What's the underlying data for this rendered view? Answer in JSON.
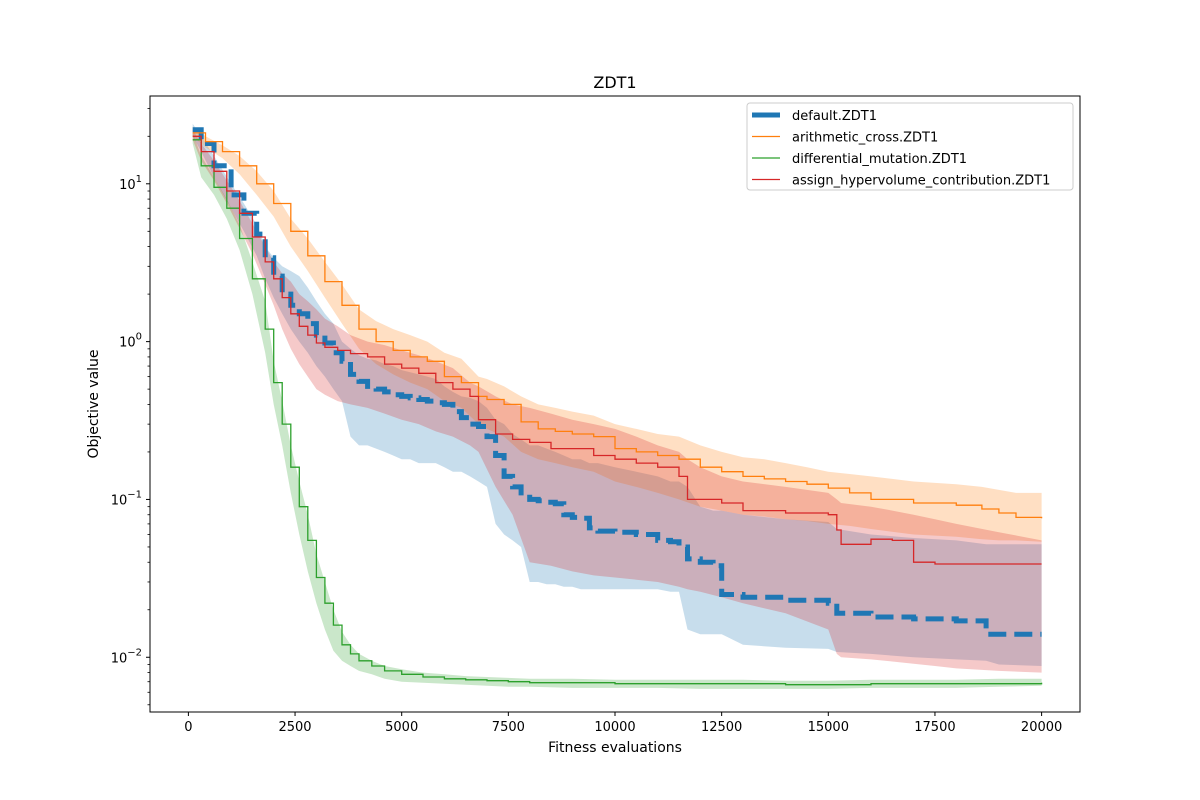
{
  "chart_data": {
    "type": "line",
    "title": "ZDT1",
    "xlabel": "Fitness evaluations",
    "ylabel": "Objective value",
    "xlim": [
      -900,
      20900
    ],
    "ylim": [
      0.0045,
      36
    ],
    "yscale": "log",
    "grid": false,
    "legend_position": "top-right",
    "x_ticks": [
      {
        "value": 0,
        "label": "0"
      },
      {
        "value": 2500,
        "label": "2500"
      },
      {
        "value": 5000,
        "label": "5000"
      },
      {
        "value": 7500,
        "label": "7500"
      },
      {
        "value": 10000,
        "label": "10000"
      },
      {
        "value": 12500,
        "label": "12500"
      },
      {
        "value": 15000,
        "label": "15000"
      },
      {
        "value": 17500,
        "label": "17500"
      },
      {
        "value": 20000,
        "label": "20000"
      }
    ],
    "y_ticks": [
      {
        "value": 0.01,
        "base": "10",
        "exp": "−2"
      },
      {
        "value": 0.1,
        "base": "10",
        "exp": "−1"
      },
      {
        "value": 1,
        "base": "10",
        "exp": "0"
      },
      {
        "value": 10,
        "base": "10",
        "exp": "1"
      }
    ],
    "series": [
      {
        "name": "default.ZDT1",
        "color": "#1f77b4",
        "style": "dashed-thick",
        "x": [
          100,
          300,
          600,
          1000,
          1300,
          1600,
          1800,
          2000,
          2200,
          2400,
          2600,
          2800,
          3000,
          3200,
          3400,
          3600,
          3800,
          4000,
          4200,
          4400,
          4600,
          4800,
          5000,
          5200,
          5400,
          5600,
          5800,
          6000,
          6200,
          6400,
          6600,
          6800,
          7000,
          7200,
          7400,
          7600,
          7800,
          8000,
          8200,
          8400,
          8600,
          8800,
          9000,
          9200,
          9400,
          9600,
          10000,
          10500,
          11000,
          11300,
          11500,
          11700,
          12000,
          12300,
          12500,
          13000,
          14000,
          15000,
          15200,
          16000,
          17000,
          18000,
          18700,
          19000,
          20000
        ],
        "y": [
          22,
          18,
          13,
          8.5,
          6.5,
          4.8,
          3.4,
          2.6,
          2.0,
          1.7,
          1.5,
          1.3,
          1.1,
          0.98,
          0.85,
          0.75,
          0.62,
          0.56,
          0.52,
          0.5,
          0.48,
          0.46,
          0.45,
          0.44,
          0.43,
          0.42,
          0.41,
          0.4,
          0.36,
          0.33,
          0.3,
          0.29,
          0.25,
          0.19,
          0.14,
          0.12,
          0.11,
          0.1,
          0.098,
          0.096,
          0.094,
          0.08,
          0.077,
          0.076,
          0.066,
          0.063,
          0.062,
          0.06,
          0.055,
          0.054,
          0.05,
          0.042,
          0.04,
          0.038,
          0.025,
          0.024,
          0.023,
          0.022,
          0.019,
          0.018,
          0.0175,
          0.017,
          0.014,
          0.014,
          0.014
        ],
        "lower": [
          20,
          16,
          11,
          7,
          5,
          3.5,
          2.5,
          1.9,
          1.5,
          1.2,
          1.0,
          0.85,
          0.7,
          0.6,
          0.5,
          0.42,
          0.25,
          0.22,
          0.22,
          0.21,
          0.2,
          0.19,
          0.18,
          0.18,
          0.17,
          0.17,
          0.17,
          0.16,
          0.15,
          0.15,
          0.14,
          0.13,
          0.12,
          0.07,
          0.06,
          0.055,
          0.05,
          0.03,
          0.03,
          0.029,
          0.029,
          0.028,
          0.028,
          0.027,
          0.027,
          0.027,
          0.027,
          0.027,
          0.027,
          0.026,
          0.026,
          0.015,
          0.014,
          0.014,
          0.014,
          0.012,
          0.0115,
          0.0113,
          0.0108,
          0.0105,
          0.01,
          0.0097,
          0.0095,
          0.009,
          0.0088
        ],
        "upper": [
          24,
          20,
          15,
          10,
          7.5,
          5.5,
          4.0,
          3.4,
          3.0,
          2.8,
          2.6,
          2.2,
          1.8,
          1.5,
          1.3,
          1.0,
          0.9,
          0.82,
          0.78,
          0.76,
          0.72,
          0.7,
          0.66,
          0.64,
          0.62,
          0.6,
          0.58,
          0.52,
          0.48,
          0.45,
          0.44,
          0.42,
          0.38,
          0.32,
          0.3,
          0.26,
          0.24,
          0.22,
          0.22,
          0.21,
          0.2,
          0.19,
          0.18,
          0.18,
          0.17,
          0.17,
          0.16,
          0.15,
          0.14,
          0.13,
          0.13,
          0.12,
          0.09,
          0.085,
          0.085,
          0.08,
          0.075,
          0.072,
          0.065,
          0.06,
          0.057,
          0.055,
          0.052,
          0.052,
          0.052
        ]
      },
      {
        "name": "arithmetic_cross.ZDT1",
        "color": "#ff7f0e",
        "style": "solid",
        "x": [
          100,
          400,
          800,
          1200,
          1600,
          2000,
          2400,
          2800,
          3200,
          3600,
          4000,
          4400,
          4800,
          5200,
          5600,
          6000,
          6400,
          6800,
          7000,
          7400,
          7800,
          8200,
          8600,
          9000,
          9500,
          10000,
          10500,
          11000,
          11500,
          12000,
          12500,
          13000,
          13500,
          14000,
          14500,
          15000,
          15500,
          16000,
          17000,
          18000,
          18600,
          19000,
          19400,
          20000
        ],
        "y": [
          21,
          18.5,
          16,
          13,
          10,
          7.5,
          5.0,
          3.5,
          2.4,
          1.7,
          1.2,
          1.0,
          0.88,
          0.8,
          0.75,
          0.6,
          0.55,
          0.45,
          0.43,
          0.4,
          0.31,
          0.28,
          0.27,
          0.26,
          0.25,
          0.21,
          0.2,
          0.19,
          0.18,
          0.16,
          0.15,
          0.14,
          0.135,
          0.13,
          0.125,
          0.118,
          0.11,
          0.1,
          0.095,
          0.092,
          0.087,
          0.082,
          0.077,
          0.076
        ],
        "lower": [
          20,
          17,
          14.5,
          11.5,
          8.5,
          6.2,
          4.0,
          2.8,
          1.9,
          1.3,
          0.9,
          0.72,
          0.62,
          0.55,
          0.5,
          0.42,
          0.38,
          0.3,
          0.28,
          0.25,
          0.2,
          0.18,
          0.17,
          0.16,
          0.15,
          0.13,
          0.12,
          0.11,
          0.1,
          0.09,
          0.085,
          0.08,
          0.078,
          0.075,
          0.073,
          0.07,
          0.068,
          0.065,
          0.06,
          0.058,
          0.056,
          0.055,
          0.055,
          0.054
        ],
        "upper": [
          23,
          20,
          17.5,
          15,
          12,
          9,
          6.0,
          4.5,
          3.2,
          2.3,
          1.6,
          1.35,
          1.2,
          1.1,
          1.0,
          0.85,
          0.78,
          0.6,
          0.58,
          0.52,
          0.45,
          0.4,
          0.38,
          0.36,
          0.34,
          0.3,
          0.28,
          0.26,
          0.25,
          0.22,
          0.2,
          0.185,
          0.18,
          0.17,
          0.16,
          0.15,
          0.145,
          0.14,
          0.13,
          0.125,
          0.12,
          0.115,
          0.11,
          0.11
        ]
      },
      {
        "name": "differential_mutation.ZDT1",
        "color": "#2ca02c",
        "style": "solid",
        "x": [
          100,
          300,
          600,
          900,
          1200,
          1500,
          1800,
          2000,
          2200,
          2400,
          2600,
          2800,
          3000,
          3200,
          3400,
          3600,
          3800,
          4000,
          4300,
          4600,
          5000,
          5500,
          6000,
          6500,
          7000,
          7500,
          8000,
          9000,
          10000,
          11000,
          12000,
          13000,
          14000,
          15000,
          16000,
          17000,
          18000,
          19000,
          20000
        ],
        "y": [
          19,
          13,
          9.5,
          7.0,
          4.5,
          2.5,
          1.2,
          0.55,
          0.3,
          0.16,
          0.09,
          0.055,
          0.032,
          0.022,
          0.016,
          0.012,
          0.0105,
          0.0095,
          0.0088,
          0.0082,
          0.0078,
          0.0075,
          0.0073,
          0.0072,
          0.0071,
          0.007,
          0.0069,
          0.0069,
          0.0068,
          0.0068,
          0.0068,
          0.0068,
          0.0067,
          0.0067,
          0.0068,
          0.0068,
          0.0068,
          0.0068,
          0.0069
        ],
        "lower": [
          18,
          11,
          8.5,
          6.0,
          3.8,
          2.0,
          0.85,
          0.4,
          0.22,
          0.11,
          0.06,
          0.035,
          0.022,
          0.015,
          0.011,
          0.0095,
          0.0088,
          0.0082,
          0.0078,
          0.0073,
          0.007,
          0.0069,
          0.0068,
          0.0067,
          0.0066,
          0.0065,
          0.0065,
          0.0064,
          0.0064,
          0.0064,
          0.0063,
          0.0063,
          0.0063,
          0.0063,
          0.0064,
          0.0064,
          0.0064,
          0.0065,
          0.0066
        ],
        "upper": [
          21,
          15,
          11,
          8.0,
          5.5,
          3.2,
          1.8,
          0.75,
          0.42,
          0.22,
          0.13,
          0.08,
          0.045,
          0.03,
          0.02,
          0.0145,
          0.012,
          0.0105,
          0.0095,
          0.0088,
          0.0084,
          0.008,
          0.0078,
          0.0076,
          0.0075,
          0.0074,
          0.0073,
          0.0073,
          0.0072,
          0.0072,
          0.0072,
          0.0072,
          0.0071,
          0.0071,
          0.0072,
          0.0072,
          0.0072,
          0.0073,
          0.0073
        ]
      },
      {
        "name": "assign_hypervolume_contribution.ZDT1",
        "color": "#d62728",
        "style": "solid",
        "x": [
          100,
          300,
          600,
          900,
          1200,
          1500,
          1800,
          2000,
          2200,
          2400,
          2600,
          2800,
          3000,
          3200,
          3500,
          3800,
          4200,
          4600,
          5000,
          5400,
          5800,
          6200,
          6600,
          6800,
          7200,
          7600,
          8000,
          8500,
          9000,
          9500,
          10000,
          10500,
          11000,
          11500,
          11700,
          12000,
          12500,
          13000,
          14000,
          15000,
          15200,
          15300,
          16000,
          16500,
          17000,
          17500,
          18000,
          19000,
          20000
        ],
        "y": [
          20,
          16,
          12,
          9.0,
          6.5,
          4.6,
          3.2,
          2.5,
          1.9,
          1.5,
          1.25,
          1.1,
          0.98,
          0.92,
          0.88,
          0.84,
          0.8,
          0.72,
          0.68,
          0.63,
          0.55,
          0.5,
          0.45,
          0.32,
          0.26,
          0.24,
          0.23,
          0.21,
          0.21,
          0.19,
          0.18,
          0.17,
          0.16,
          0.14,
          0.1,
          0.1,
          0.095,
          0.085,
          0.082,
          0.08,
          0.064,
          0.052,
          0.056,
          0.055,
          0.04,
          0.039,
          0.039,
          0.039,
          0.039
        ],
        "lower": [
          19,
          14,
          10.5,
          7.5,
          5.2,
          3.6,
          2.3,
          1.7,
          1.2,
          0.9,
          0.72,
          0.6,
          0.5,
          0.46,
          0.42,
          0.4,
          0.38,
          0.35,
          0.32,
          0.3,
          0.27,
          0.25,
          0.22,
          0.2,
          0.12,
          0.08,
          0.04,
          0.038,
          0.035,
          0.033,
          0.032,
          0.031,
          0.03,
          0.028,
          0.027,
          0.026,
          0.024,
          0.022,
          0.019,
          0.015,
          0.0105,
          0.01,
          0.0097,
          0.0094,
          0.0091,
          0.0088,
          0.0085,
          0.0082,
          0.008
        ],
        "upper": [
          22,
          18,
          14,
          10.5,
          7.8,
          5.6,
          4.0,
          3.2,
          2.7,
          2.4,
          2.0,
          1.8,
          1.6,
          1.4,
          1.25,
          1.1,
          1.0,
          0.95,
          0.88,
          0.82,
          0.75,
          0.68,
          0.55,
          0.52,
          0.45,
          0.4,
          0.38,
          0.35,
          0.32,
          0.3,
          0.28,
          0.25,
          0.22,
          0.2,
          0.18,
          0.16,
          0.14,
          0.13,
          0.12,
          0.11,
          0.1,
          0.095,
          0.09,
          0.085,
          0.08,
          0.075,
          0.07,
          0.062,
          0.055
        ]
      }
    ]
  }
}
